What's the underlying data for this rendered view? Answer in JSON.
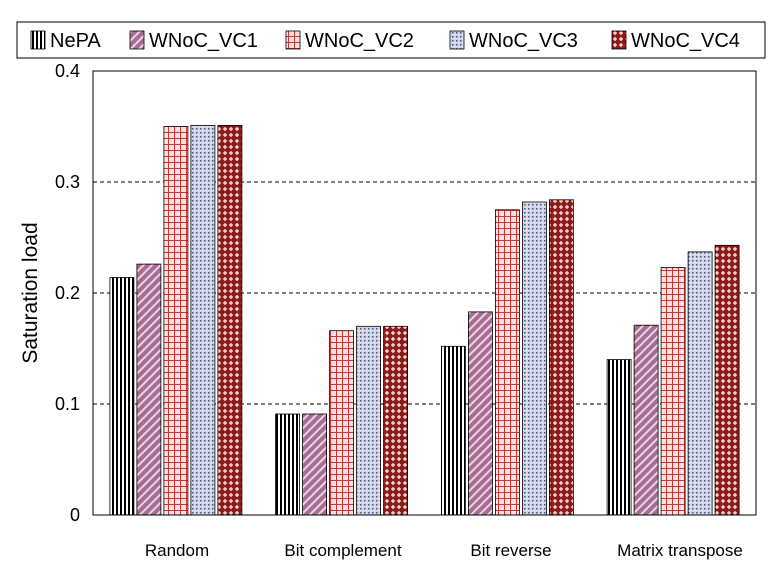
{
  "chart_data": {
    "type": "bar",
    "title": "",
    "xlabel": "",
    "ylabel": "Saturation load",
    "ylim": [
      0,
      0.4
    ],
    "yticks": [
      "0",
      "0.1",
      "0.2",
      "0.3",
      "0.4"
    ],
    "grid": "horizontal dashed",
    "legend_position": "top",
    "categories": [
      "Random",
      "Bit complement",
      "Bit reverse",
      "Matrix transpose"
    ],
    "series": [
      {
        "name": "NePA",
        "pattern": "vertical-lines",
        "color": "#000000",
        "values": [
          0.214,
          0.091,
          0.152,
          0.14
        ]
      },
      {
        "name": "WNoC_VC1",
        "pattern": "diagonal-lines",
        "color": "#8a5a78",
        "values": [
          0.226,
          0.091,
          0.183,
          0.171
        ]
      },
      {
        "name": "WNoC_VC2",
        "pattern": "red-grid",
        "color": "#e04040",
        "values": [
          0.35,
          0.166,
          0.275,
          0.223
        ]
      },
      {
        "name": "WNoC_VC3",
        "pattern": "gray-dots",
        "color": "#a0a6c0",
        "values": [
          0.351,
          0.17,
          0.282,
          0.237
        ]
      },
      {
        "name": "WNoC_VC4",
        "pattern": "dark-red-diamonds",
        "color": "#8b1a1a",
        "values": [
          0.351,
          0.17,
          0.284,
          0.243
        ]
      }
    ]
  }
}
